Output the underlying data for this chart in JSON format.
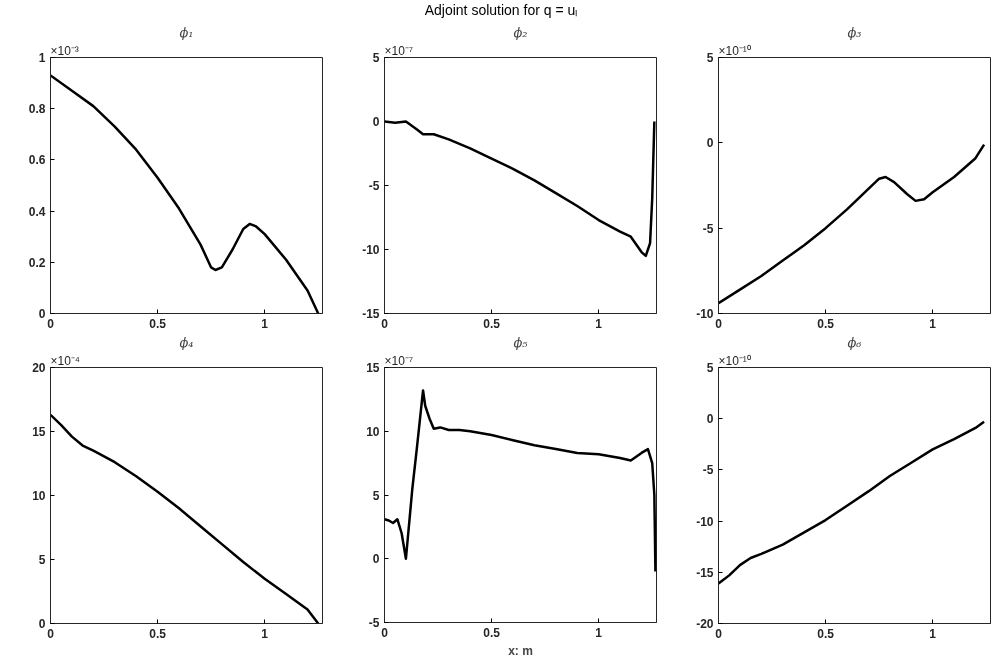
{
  "chart_data": [
    {
      "type": "line",
      "title": "ϕ₁",
      "annotations": [
        "×10⁻³"
      ],
      "xlim": [
        0,
        1.27
      ],
      "ylim": [
        0,
        1
      ],
      "xticks": [
        0,
        0.5,
        1
      ],
      "yticks": [
        0,
        0.2,
        0.4,
        0.6,
        0.8,
        1
      ],
      "grid": false,
      "line_style": "solid",
      "x": [
        0,
        0.1,
        0.2,
        0.3,
        0.4,
        0.5,
        0.6,
        0.7,
        0.75,
        0.77,
        0.8,
        0.85,
        0.9,
        0.93,
        0.96,
        1.0,
        1.1,
        1.2,
        1.25
      ],
      "series": [
        {
          "color": "#000000",
          "values": [
            0.93,
            0.87,
            0.81,
            0.73,
            0.64,
            0.53,
            0.41,
            0.27,
            0.18,
            0.17,
            0.18,
            0.25,
            0.33,
            0.35,
            0.34,
            0.31,
            0.21,
            0.09,
            0.0
          ]
        }
      ]
    },
    {
      "type": "line",
      "title": "ϕ₂",
      "annotations": [
        "Adjoint solution for q = uₗ",
        "×10⁻⁷"
      ],
      "xlim": [
        0,
        1.27
      ],
      "ylim": [
        -15,
        5
      ],
      "xticks": [
        0,
        0.5,
        1
      ],
      "yticks": [
        -15,
        -10,
        -5,
        0,
        5
      ],
      "grid": false,
      "line_style": "solid",
      "x": [
        0,
        0.05,
        0.1,
        0.15,
        0.18,
        0.23,
        0.3,
        0.4,
        0.5,
        0.6,
        0.7,
        0.8,
        0.9,
        1.0,
        1.1,
        1.15,
        1.2,
        1.22,
        1.24,
        1.25,
        1.26
      ],
      "series": [
        {
          "color": "#000000",
          "values": [
            0,
            -0.1,
            0,
            -0.6,
            -1.0,
            -1.0,
            -1.4,
            -2.1,
            -2.9,
            -3.7,
            -4.6,
            -5.6,
            -6.6,
            -7.7,
            -8.6,
            -9.0,
            -10.2,
            -10.5,
            -9.5,
            -6,
            0
          ]
        }
      ]
    },
    {
      "type": "line",
      "title": "ϕ₃",
      "annotations": [
        "×10⁻¹⁰"
      ],
      "xlim": [
        0,
        1.27
      ],
      "ylim": [
        -10,
        5
      ],
      "xticks": [
        0,
        0.5,
        1
      ],
      "yticks": [
        -10,
        -5,
        0,
        5
      ],
      "grid": false,
      "line_style": "solid",
      "x": [
        0,
        0.1,
        0.2,
        0.3,
        0.4,
        0.5,
        0.6,
        0.7,
        0.75,
        0.78,
        0.82,
        0.88,
        0.92,
        0.96,
        1.0,
        1.1,
        1.2,
        1.24
      ],
      "series": [
        {
          "color": "#000000",
          "values": [
            -9.4,
            -8.6,
            -7.8,
            -6.9,
            -6.0,
            -5.0,
            -3.9,
            -2.7,
            -2.1,
            -2.0,
            -2.3,
            -3.0,
            -3.4,
            -3.3,
            -2.9,
            -2.0,
            -0.9,
            -0.1
          ]
        }
      ]
    },
    {
      "type": "line",
      "title": "ϕ₄",
      "annotations": [
        "×10⁻⁴"
      ],
      "xlim": [
        0,
        1.27
      ],
      "ylim": [
        0,
        20
      ],
      "xticks": [
        0,
        0.5,
        1
      ],
      "yticks": [
        0,
        5,
        10,
        15,
        20
      ],
      "grid": false,
      "line_style": "solid",
      "x": [
        0,
        0.05,
        0.1,
        0.15,
        0.2,
        0.3,
        0.4,
        0.5,
        0.6,
        0.7,
        0.8,
        0.9,
        1.0,
        1.1,
        1.2,
        1.25
      ],
      "series": [
        {
          "color": "#000000",
          "values": [
            16.3,
            15.5,
            14.6,
            13.9,
            13.5,
            12.6,
            11.5,
            10.3,
            9.0,
            7.6,
            6.2,
            4.8,
            3.5,
            2.3,
            1.1,
            0
          ]
        }
      ]
    },
    {
      "type": "line",
      "title": "ϕ₅",
      "xlabel": "x: m",
      "annotations": [
        "×10⁻⁷"
      ],
      "xlim": [
        0,
        1.27
      ],
      "ylim": [
        -5,
        15
      ],
      "xticks": [
        0,
        0.5,
        1
      ],
      "yticks": [
        -5,
        0,
        5,
        10,
        15
      ],
      "grid": false,
      "line_style": "solid",
      "x": [
        0,
        0.02,
        0.04,
        0.06,
        0.08,
        0.1,
        0.13,
        0.15,
        0.18,
        0.19,
        0.21,
        0.23,
        0.26,
        0.3,
        0.35,
        0.4,
        0.5,
        0.6,
        0.7,
        0.8,
        0.9,
        1.0,
        1.1,
        1.15,
        1.2,
        1.23,
        1.25,
        1.26,
        1.265
      ],
      "series": [
        {
          "color": "#000000",
          "values": [
            3.1,
            3.0,
            2.8,
            3.1,
            2.0,
            0.0,
            5.5,
            8.5,
            13.2,
            12,
            11,
            10.2,
            10.3,
            10.1,
            10.1,
            10.0,
            9.7,
            9.3,
            8.9,
            8.6,
            8.3,
            8.2,
            7.9,
            7.7,
            8.3,
            8.6,
            7.5,
            5,
            -1.0
          ]
        }
      ]
    },
    {
      "type": "line",
      "title": "ϕ₆",
      "annotations": [
        "×10⁻¹⁰"
      ],
      "xlim": [
        0,
        1.27
      ],
      "ylim": [
        -20,
        5
      ],
      "xticks": [
        0,
        0.5,
        1
      ],
      "yticks": [
        -20,
        -15,
        -10,
        -5,
        0,
        5
      ],
      "grid": false,
      "line_style": "solid",
      "x": [
        0,
        0.05,
        0.1,
        0.15,
        0.2,
        0.3,
        0.4,
        0.5,
        0.6,
        0.7,
        0.8,
        0.9,
        1.0,
        1.1,
        1.2,
        1.24
      ],
      "series": [
        {
          "color": "#000000",
          "values": [
            -16.1,
            -15.3,
            -14.3,
            -13.6,
            -13.2,
            -12.3,
            -11.1,
            -9.9,
            -8.5,
            -7.1,
            -5.6,
            -4.3,
            -3.0,
            -2.0,
            -0.9,
            -0.3
          ]
        }
      ]
    }
  ]
}
